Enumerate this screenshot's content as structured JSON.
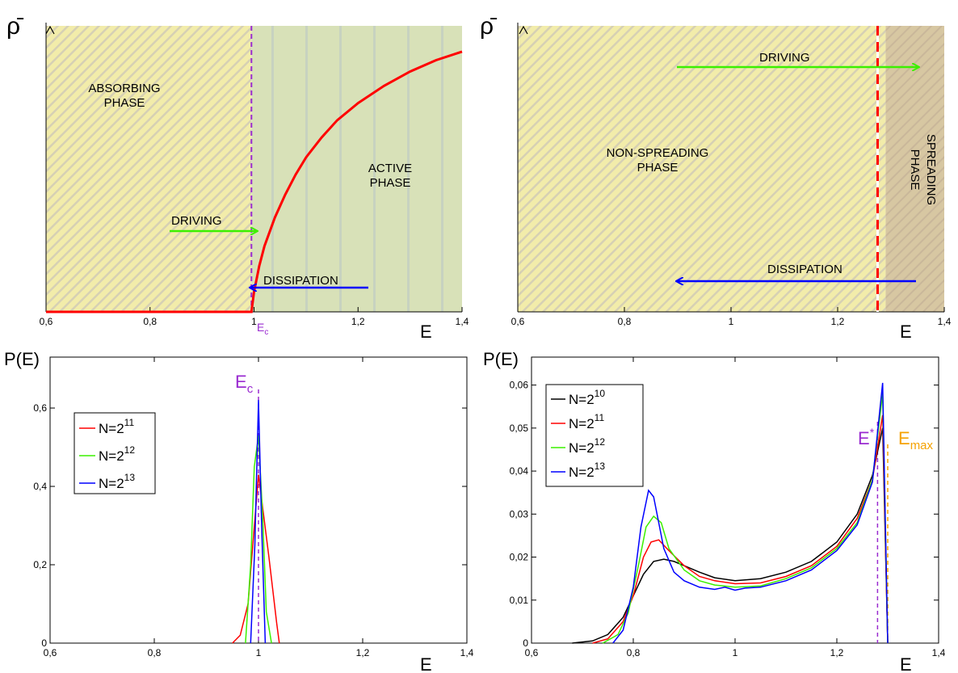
{
  "colors": {
    "hatch_bg": "#f2ecaa",
    "hatch_line": "#d6d0b4",
    "active_bg": "#d8e1b8",
    "active_stripe": "#c7d2c0",
    "spreading_bg": "#d7c7a2",
    "red": "#ff0000",
    "green": "#3cf000",
    "blue": "#0000ff",
    "purple": "#9a2bd0",
    "orange": "#f5a200",
    "black": "#000000"
  },
  "chart_data": [
    {
      "id": "top-left",
      "type": "line",
      "ylabel": "ρ̄",
      "xlabel": "E",
      "xlim": [
        0.6,
        1.4
      ],
      "ylim": [
        0,
        1
      ],
      "x_ticks": [
        "0,6",
        "0,8",
        "1",
        "1,2",
        "1,4"
      ],
      "critical_line": {
        "x": 0.995,
        "label": "E",
        "label_sub": "c"
      },
      "regions": {
        "left": "ABSORBING PHASE",
        "right": "ACTIVE PHASE"
      },
      "region_labels": {
        "absorbing": [
          "ABSORBING",
          "PHASE"
        ],
        "active": [
          "ACTIVE",
          "PHASE"
        ]
      },
      "arrows": {
        "driving": "DRIVING",
        "dissipation": "DISSIPATION"
      },
      "curve": {
        "x": [
          0.6,
          0.995,
          1.0,
          1.01,
          1.02,
          1.04,
          1.06,
          1.08,
          1.1,
          1.13,
          1.16,
          1.2,
          1.25,
          1.3,
          1.35,
          1.4
        ],
        "y": [
          0,
          0,
          0.07,
          0.16,
          0.23,
          0.33,
          0.41,
          0.48,
          0.54,
          0.61,
          0.67,
          0.73,
          0.79,
          0.84,
          0.88,
          0.91
        ]
      }
    },
    {
      "id": "top-right",
      "type": "line",
      "ylabel": "ρ̄",
      "xlabel": "E",
      "xlim": [
        0.6,
        1.4
      ],
      "ylim": [
        0,
        1
      ],
      "x_ticks": [
        "0,6",
        "0,8",
        "1",
        "1,2",
        "1,4"
      ],
      "critical_line": {
        "x": 1.275
      },
      "spreading_start": 1.29,
      "region_labels": {
        "non_spreading": [
          "NON-SPREADING",
          "PHASE"
        ],
        "spreading": [
          "SPREADING",
          "PHASE"
        ]
      },
      "arrows": {
        "driving": "DRIVING",
        "dissipation": "DISSIPATION"
      }
    },
    {
      "id": "bottom-left",
      "type": "line",
      "ylabel": "P(E)",
      "xlabel": "E",
      "xlim": [
        0.6,
        1.4
      ],
      "ylim": [
        0,
        0.73
      ],
      "x_ticks": [
        "0,6",
        "0,8",
        "1",
        "1,2",
        "1,4"
      ],
      "y_ticks": [
        {
          "v": 0,
          "t": "0"
        },
        {
          "v": 0.2,
          "t": "0,2"
        },
        {
          "v": 0.4,
          "t": "0,4"
        },
        {
          "v": 0.6,
          "t": "0,6"
        }
      ],
      "critical_line": {
        "x": 1.0,
        "label": "E",
        "label_sub": "c"
      },
      "legend": [
        {
          "prefix": "N=2",
          "exp": "11",
          "color": "#ff0000"
        },
        {
          "prefix": "N=2",
          "exp": "12",
          "color": "#3cf000"
        },
        {
          "prefix": "N=2",
          "exp": "13",
          "color": "#0000ff"
        }
      ],
      "series": [
        {
          "name": "N=2^11",
          "color": "#ff0000",
          "x": [
            0.95,
            0.965,
            0.98,
            1.0,
            1.02,
            1.035,
            1.04
          ],
          "y": [
            0,
            0.02,
            0.1,
            0.43,
            0.22,
            0.05,
            0
          ]
        },
        {
          "name": "N=2^12",
          "color": "#3cf000",
          "x": [
            0.975,
            0.985,
            0.992,
            1.0,
            1.008,
            1.015,
            1.025
          ],
          "y": [
            0,
            0.2,
            0.45,
            0.53,
            0.32,
            0.08,
            0
          ]
        },
        {
          "name": "N=2^13",
          "color": "#0000ff",
          "x": [
            0.985,
            0.993,
            1.0,
            1.006,
            1.013
          ],
          "y": [
            0,
            0.25,
            0.62,
            0.3,
            0
          ]
        }
      ]
    },
    {
      "id": "bottom-right",
      "type": "line",
      "ylabel": "P(E)",
      "xlabel": "E",
      "xlim": [
        0.6,
        1.4
      ],
      "ylim": [
        0,
        0.0665
      ],
      "x_ticks": [
        "0,6",
        "0,8",
        "1",
        "1,2",
        "1,4"
      ],
      "y_ticks": [
        {
          "v": 0,
          "t": "0"
        },
        {
          "v": 0.01,
          "t": "0,01"
        },
        {
          "v": 0.02,
          "t": "0,02"
        },
        {
          "v": 0.03,
          "t": "0,03"
        },
        {
          "v": 0.04,
          "t": "0,04"
        },
        {
          "v": 0.05,
          "t": "0,05"
        },
        {
          "v": 0.06,
          "t": "0,06"
        }
      ],
      "lines": [
        {
          "x": 1.28,
          "label": "E",
          "label_sup": "*",
          "color": "#9a2bd0"
        },
        {
          "x": 1.3,
          "label": "E",
          "label_sub": "max",
          "color": "#f5a200"
        }
      ],
      "legend": [
        {
          "prefix": "N=2",
          "exp": "10",
          "color": "#000000"
        },
        {
          "prefix": "N=2",
          "exp": "11",
          "color": "#ff0000"
        },
        {
          "prefix": "N=2",
          "exp": "12",
          "color": "#3cf000"
        },
        {
          "prefix": "N=2",
          "exp": "13",
          "color": "#0000ff"
        }
      ],
      "series": [
        {
          "name": "N=2^10",
          "color": "#000000",
          "x": [
            0.68,
            0.72,
            0.75,
            0.78,
            0.8,
            0.82,
            0.84,
            0.86,
            0.88,
            0.9,
            0.93,
            0.96,
            1.0,
            1.05,
            1.1,
            1.15,
            1.2,
            1.24,
            1.27,
            1.29,
            1.3
          ],
          "y": [
            0,
            0.0005,
            0.002,
            0.006,
            0.011,
            0.016,
            0.019,
            0.0195,
            0.019,
            0.018,
            0.0165,
            0.0152,
            0.0145,
            0.015,
            0.0165,
            0.019,
            0.0235,
            0.03,
            0.039,
            0.05,
            0
          ]
        },
        {
          "name": "N=2^11",
          "color": "#ff0000",
          "x": [
            0.72,
            0.75,
            0.78,
            0.8,
            0.82,
            0.835,
            0.85,
            0.87,
            0.9,
            0.93,
            0.96,
            1.0,
            1.05,
            1.1,
            1.15,
            1.2,
            1.24,
            1.27,
            1.29,
            1.3
          ],
          "y": [
            0,
            0.001,
            0.005,
            0.011,
            0.02,
            0.0235,
            0.024,
            0.0215,
            0.018,
            0.0155,
            0.0145,
            0.0138,
            0.014,
            0.0155,
            0.018,
            0.0225,
            0.029,
            0.038,
            0.053,
            0
          ]
        },
        {
          "name": "N=2^12",
          "color": "#3cf000",
          "x": [
            0.74,
            0.77,
            0.79,
            0.81,
            0.825,
            0.84,
            0.855,
            0.87,
            0.9,
            0.93,
            0.96,
            1.0,
            1.05,
            1.1,
            1.15,
            1.2,
            1.24,
            1.27,
            1.29,
            1.3
          ],
          "y": [
            0,
            0.002,
            0.007,
            0.018,
            0.027,
            0.0295,
            0.028,
            0.022,
            0.017,
            0.0145,
            0.0135,
            0.013,
            0.0133,
            0.015,
            0.0175,
            0.022,
            0.028,
            0.038,
            0.058,
            0
          ]
        },
        {
          "name": "N=2^13",
          "color": "#0000ff",
          "x": [
            0.76,
            0.78,
            0.8,
            0.815,
            0.83,
            0.84,
            0.85,
            0.86,
            0.88,
            0.9,
            0.93,
            0.96,
            0.98,
            1.0,
            1.02,
            1.05,
            1.1,
            1.15,
            1.2,
            1.24,
            1.27,
            1.29,
            1.3
          ],
          "y": [
            0,
            0.003,
            0.013,
            0.027,
            0.0355,
            0.034,
            0.028,
            0.022,
            0.0165,
            0.0145,
            0.013,
            0.0125,
            0.013,
            0.0123,
            0.0128,
            0.013,
            0.0145,
            0.017,
            0.0215,
            0.0275,
            0.0375,
            0.0605,
            0
          ]
        }
      ]
    }
  ]
}
